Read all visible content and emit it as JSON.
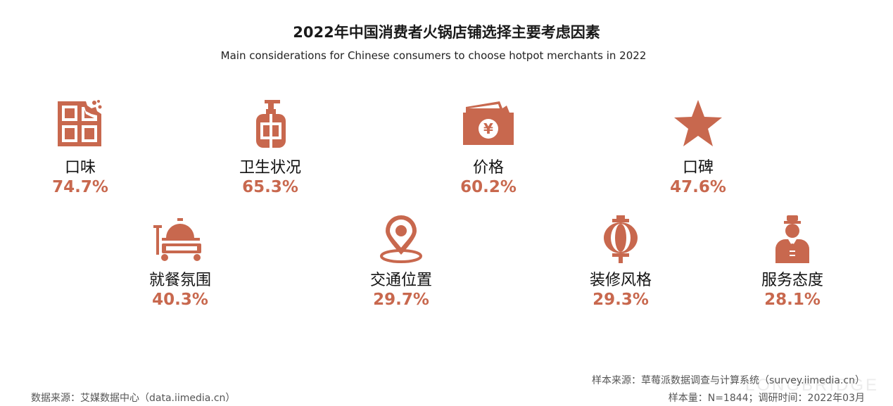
{
  "title": "2022年中国消费者火锅店铺选择主要考虑因素",
  "subtitle": "Main considerations for Chinese consumers to choose hotpot merchants in 2022",
  "chart_data": {
    "type": "infographic",
    "unit": "%",
    "categories": [
      "口味",
      "卫生状况",
      "价格",
      "口碑",
      "就餐氛围",
      "交通位置",
      "装修风格",
      "服务态度"
    ],
    "values": [
      74.7,
      65.3,
      60.2,
      47.6,
      40.3,
      29.7,
      29.3,
      28.1
    ],
    "value_labels": [
      "74.7%",
      "65.3%",
      "60.2%",
      "47.6%",
      "40.3%",
      "29.7%",
      "29.3%",
      "28.1%"
    ],
    "icons": [
      "chocolate-bar-icon",
      "soap-dispenser-icon",
      "money-envelope-icon",
      "star-icon",
      "serving-cart-icon",
      "location-pin-icon",
      "lantern-icon",
      "waiter-icon"
    ],
    "accent_color": "#c8684e"
  },
  "footer": {
    "data_source": "数据来源：艾媒数据中心（data.iimedia.cn）",
    "sample_source": "样本来源：草莓派数据调查与计算系统（survey.iimedia.cn）",
    "sample_size": "样本量：N=1844；调研时间：2022年03月"
  },
  "watermark": "LONGBRIDGE"
}
